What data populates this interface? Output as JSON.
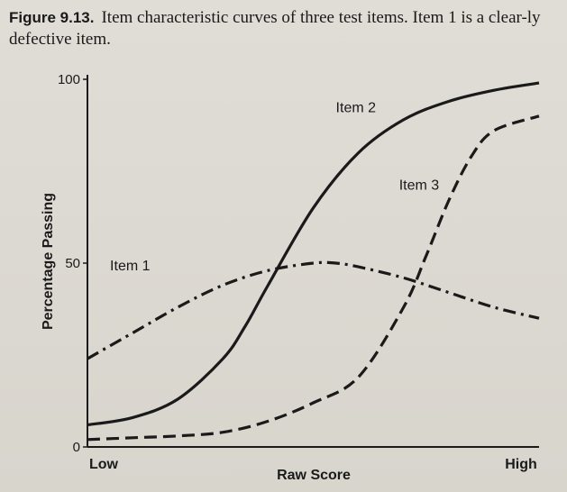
{
  "caption": {
    "label": "Figure 9.13.",
    "text": "Item characteristic curves of three test items. Item 1 is a clear-ly defective item."
  },
  "chart_data": {
    "type": "line",
    "xlabel": "Raw Score",
    "ylabel": "Percentage Passing",
    "x_tick_labels": [
      "Low",
      "High"
    ],
    "y_ticks": [
      0,
      50,
      100
    ],
    "xlim": [
      0,
      100
    ],
    "ylim": [
      0,
      100
    ],
    "series": [
      {
        "name": "Item 1",
        "style": "dash-dot",
        "x": [
          0,
          10,
          20,
          30,
          40,
          50,
          55,
          60,
          70,
          80,
          90,
          100
        ],
        "y": [
          24,
          31,
          38,
          44,
          48,
          50,
          50,
          49,
          46,
          42,
          38,
          35
        ]
      },
      {
        "name": "Item 2",
        "style": "solid",
        "x": [
          0,
          10,
          20,
          30,
          35,
          40,
          50,
          60,
          70,
          80,
          90,
          100
        ],
        "y": [
          6,
          8,
          13,
          24,
          33,
          44,
          65,
          80,
          89,
          94,
          97,
          99
        ]
      },
      {
        "name": "Item 3",
        "style": "dashed",
        "x": [
          0,
          10,
          20,
          30,
          40,
          50,
          60,
          70,
          75,
          80,
          85,
          90,
          100
        ],
        "y": [
          2,
          2.5,
          3,
          4,
          7,
          12,
          19,
          38,
          52,
          67,
          79,
          86,
          90
        ]
      }
    ]
  }
}
